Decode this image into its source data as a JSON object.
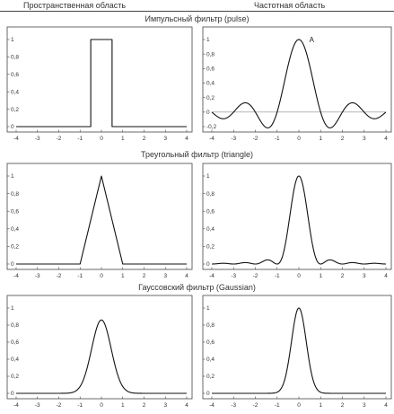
{
  "headers": {
    "spatial": "Пространственная область",
    "frequency": "Частотная область"
  },
  "row_titles": [
    "Импульсный фильтр (pulse)",
    "Треугольный фильтр (triangle)",
    "Гауссовский фильтр (Gaussian)"
  ],
  "chart_data": [
    {
      "type": "line",
      "panel": "pulse-spatial",
      "function": "box, height 1 for |x| < 0.5",
      "x": [
        -4,
        -0.5,
        -0.5,
        0.5,
        0.5,
        4
      ],
      "y": [
        0,
        0,
        1,
        1,
        0,
        0
      ],
      "xlim": [
        -4,
        4
      ],
      "ylim": [
        0,
        1
      ],
      "xticks": [
        "-4",
        "-3",
        "-2",
        "-1",
        "0",
        "1",
        "2",
        "3",
        "4"
      ],
      "yticks": [
        "0",
        "0,2",
        "0,4",
        "0,6",
        "0,8",
        "1"
      ]
    },
    {
      "type": "line",
      "panel": "pulse-frequency",
      "function": "sinc(x) = sin(pi x)/(pi x)",
      "x": [
        -4,
        -3.5,
        -3,
        -2.5,
        -2,
        -1.5,
        -1,
        -0.5,
        0,
        0.5,
        1,
        1.5,
        2,
        2.5,
        3,
        3.5,
        4
      ],
      "y": [
        0,
        -0.09,
        0,
        0.13,
        0,
        -0.21,
        0,
        0.64,
        1,
        0.64,
        0,
        -0.21,
        0,
        0.13,
        0,
        -0.09,
        0
      ],
      "xlim": [
        -4,
        4
      ],
      "ylim": [
        -0.2,
        1
      ],
      "xticks": [
        "-4",
        "-3",
        "-2",
        "-1",
        "0",
        "1",
        "2",
        "3",
        "4"
      ],
      "yticks": [
        "-0,2",
        "0",
        "0,2",
        "0,4",
        "0,6",
        "0,8",
        "1"
      ],
      "zero_line": true,
      "annotation": {
        "text": "A",
        "x": 0.15,
        "y": 1.0
      }
    },
    {
      "type": "line",
      "panel": "triangle-spatial",
      "function": "triangle, 1-|x| for |x| < 1",
      "x": [
        -4,
        -1,
        0,
        1,
        4
      ],
      "y": [
        0,
        0,
        1,
        0,
        0
      ],
      "xlim": [
        -4,
        4
      ],
      "ylim": [
        0,
        1
      ],
      "xticks": [
        "-4",
        "-3",
        "-2",
        "-1",
        "0",
        "1",
        "2",
        "3",
        "4"
      ],
      "yticks": [
        "0",
        "0,2",
        "0,4",
        "0,6",
        "0,8",
        "1"
      ]
    },
    {
      "type": "line",
      "panel": "triangle-frequency",
      "function": "sinc^2(x)",
      "x": [
        -4,
        -3.5,
        -3,
        -2.5,
        -2,
        -1.5,
        -1,
        -0.5,
        0,
        0.5,
        1,
        1.5,
        2,
        2.5,
        3,
        3.5,
        4
      ],
      "y": [
        0,
        0.008,
        0,
        0.016,
        0,
        0.045,
        0,
        0.405,
        1,
        0.405,
        0,
        0.045,
        0,
        0.016,
        0,
        0.008,
        0
      ],
      "xlim": [
        -4,
        4
      ],
      "ylim": [
        0,
        1
      ],
      "xticks": [
        "-4",
        "-3",
        "-2",
        "-1",
        "0",
        "1",
        "2",
        "3",
        "4"
      ],
      "yticks": [
        "0",
        "0,2",
        "0,4",
        "0,6",
        "0,8",
        "1"
      ]
    },
    {
      "type": "line",
      "panel": "gaussian-spatial",
      "function": "0.86*exp(-x^2/(2*0.46^2))",
      "x": [
        -4,
        -2,
        -1.5,
        -1,
        -0.5,
        0,
        0.5,
        1,
        1.5,
        2,
        4
      ],
      "y": [
        0,
        0,
        0.006,
        0.081,
        0.47,
        0.86,
        0.47,
        0.081,
        0.006,
        0,
        0
      ],
      "xlim": [
        -4,
        4
      ],
      "ylim": [
        0,
        1
      ],
      "xticks": [
        "-4",
        "-3",
        "-2",
        "-1",
        "0",
        "1",
        "2",
        "3",
        "4"
      ],
      "yticks": [
        "0",
        "0,2",
        "0,4",
        "0,6",
        "0,8",
        "1"
      ]
    },
    {
      "type": "line",
      "panel": "gaussian-frequency",
      "function": "exp(-x^2/(2*0.34^2))",
      "x": [
        -4,
        -1.5,
        -1,
        -0.5,
        0,
        0.5,
        1,
        1.5,
        4
      ],
      "y": [
        0,
        0,
        0.013,
        0.34,
        1,
        0.34,
        0.013,
        0,
        0
      ],
      "xlim": [
        -4,
        4
      ],
      "ylim": [
        0,
        1
      ],
      "xticks": [
        "-4",
        "-3",
        "-2",
        "-1",
        "0",
        "1",
        "2",
        "3",
        "4"
      ],
      "yticks": [
        "0",
        "0,2",
        "0,4",
        "0,6",
        "0,8",
        "1"
      ]
    }
  ]
}
